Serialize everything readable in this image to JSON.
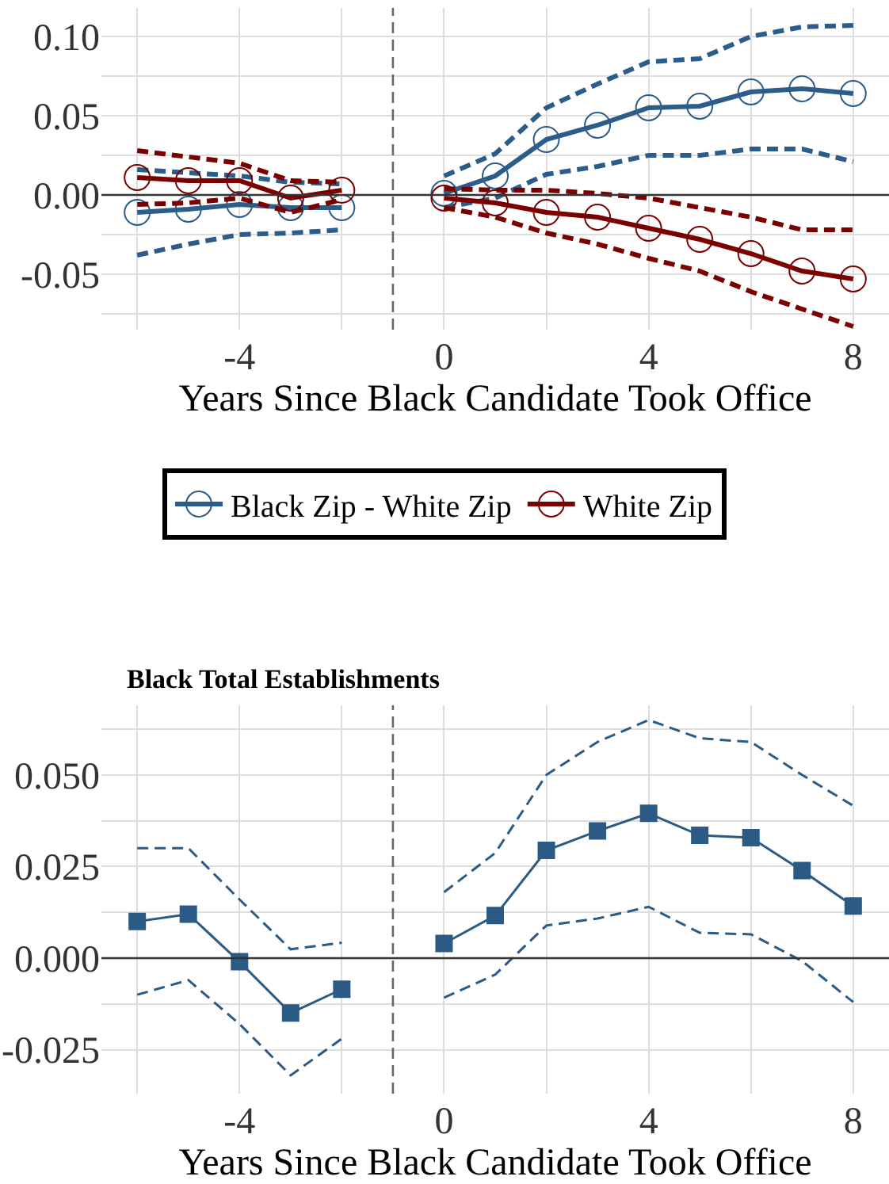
{
  "chart_data": [
    {
      "type": "line",
      "xlabel": "Years Since Black Candidate Took Office",
      "x": [
        -6,
        -5,
        -4,
        -3,
        -2,
        -1,
        0,
        1,
        2,
        3,
        4,
        5,
        6,
        7,
        8
      ],
      "series": [
        {
          "name": "Black Zip - White Zip",
          "color": "#2c5c8a",
          "marker": "circle",
          "line_style": "solid",
          "values": [
            -0.011,
            -0.009,
            -0.006,
            -0.008,
            -0.008,
            null,
            0.001,
            0.012,
            0.035,
            0.044,
            0.055,
            0.056,
            0.065,
            0.067,
            0.064
          ]
        },
        {
          "color": "#2c5c8a",
          "marker": "none",
          "line_style": "dashed",
          "values": [
            0.016,
            0.014,
            0.012,
            0.008,
            0.007,
            null,
            0.012,
            0.026,
            0.055,
            0.07,
            0.084,
            0.086,
            0.1,
            0.106,
            0.107
          ]
        },
        {
          "color": "#2c5c8a",
          "marker": "none",
          "line_style": "dashed",
          "values": [
            -0.038,
            -0.031,
            -0.025,
            -0.024,
            -0.022,
            null,
            -0.008,
            -0.002,
            0.013,
            0.018,
            0.025,
            0.025,
            0.029,
            0.029,
            0.021
          ]
        },
        {
          "name": "White Zip",
          "color": "#7b0000",
          "marker": "circle",
          "line_style": "solid",
          "values": [
            0.011,
            0.009,
            0.009,
            -0.002,
            0.003,
            null,
            -0.002,
            -0.005,
            -0.011,
            -0.014,
            -0.021,
            -0.028,
            -0.037,
            -0.048,
            -0.053
          ]
        },
        {
          "color": "#7b0000",
          "marker": "none",
          "line_style": "dashed",
          "values": [
            0.028,
            0.024,
            0.02,
            0.009,
            0.008,
            null,
            0.004,
            0.003,
            0.003,
            0.001,
            -0.002,
            -0.008,
            -0.014,
            -0.022,
            -0.022
          ]
        },
        {
          "color": "#7b0000",
          "marker": "none",
          "line_style": "dashed",
          "values": [
            -0.006,
            -0.005,
            -0.002,
            -0.011,
            -0.003,
            null,
            -0.008,
            -0.014,
            -0.024,
            -0.031,
            -0.04,
            -0.048,
            -0.061,
            -0.072,
            -0.083
          ]
        }
      ],
      "xlim": [
        -6.7,
        8.7
      ],
      "xticks": [
        {
          "value": -6,
          "label": null
        },
        -4,
        {
          "value": -2,
          "label": null
        },
        0,
        {
          "value": 2,
          "label": null
        },
        4,
        {
          "value": 6,
          "label": null
        },
        8
      ],
      "ylim": [
        -0.085,
        0.118
      ],
      "yticks": [
        {
          "value": -0.075,
          "label": null
        },
        {
          "value": -0.05,
          "label": "-0.05"
        },
        {
          "value": -0.025,
          "label": null
        },
        {
          "value": 0,
          "label": "0.00"
        },
        {
          "value": 0.025,
          "label": null
        },
        {
          "value": 0.05,
          "label": "0.05"
        },
        {
          "value": 0.075,
          "label": null
        },
        {
          "value": 0.1,
          "label": "0.10"
        }
      ],
      "ref_lines": [
        {
          "axis": "x",
          "value": -1,
          "color": "#666666",
          "line_style": "dashed"
        },
        {
          "axis": "y",
          "value": 0,
          "color": "#333333",
          "line_style": "solid"
        }
      ],
      "grid": true,
      "legend": "bottom"
    },
    {
      "type": "line",
      "title": "Black Total Establishments",
      "xlabel": "Years Since Black Candidate Took Office",
      "x": [
        -6,
        -5,
        -4,
        -3,
        -2,
        -1,
        0,
        1,
        2,
        3,
        4,
        5,
        6,
        7,
        8
      ],
      "series": [
        {
          "color": "#2b5a85",
          "marker": "square",
          "line_style": "solid",
          "values": [
            0.01,
            0.012,
            -0.001,
            -0.015,
            -0.0085,
            null,
            0.004,
            0.0116,
            0.0294,
            0.0347,
            0.0395,
            0.0335,
            0.0329,
            0.0239,
            0.0142
          ]
        },
        {
          "color": "#2b5a85",
          "marker": "none",
          "line_style": "dashed",
          "values": [
            0.03,
            0.03,
            0.016,
            0.0024,
            0.0042,
            null,
            0.018,
            0.0287,
            0.05,
            0.059,
            0.065,
            0.06,
            0.059,
            0.05,
            0.0416
          ]
        },
        {
          "color": "#2b5a85",
          "marker": "none",
          "line_style": "dashed",
          "values": [
            -0.01,
            -0.006,
            -0.018,
            -0.032,
            -0.022,
            null,
            -0.0108,
            -0.0045,
            0.0089,
            0.0108,
            0.014,
            0.0069,
            0.0065,
            -0.0008,
            -0.012
          ]
        }
      ],
      "xlim": [
        -6.7,
        8.7
      ],
      "xticks": [
        {
          "value": -6,
          "label": null
        },
        -4,
        {
          "value": -2,
          "label": null
        },
        0,
        {
          "value": 2,
          "label": null
        },
        4,
        {
          "value": 6,
          "label": null
        },
        8
      ],
      "ylim": [
        -0.037,
        0.069
      ],
      "yticks": [
        {
          "value": -0.025,
          "label": "-0.025"
        },
        {
          "value": -0.0125,
          "label": null
        },
        {
          "value": 0,
          "label": "0.000"
        },
        {
          "value": 0.0125,
          "label": null
        },
        {
          "value": 0.025,
          "label": "0.025"
        },
        {
          "value": 0.0375,
          "label": null
        },
        {
          "value": 0.05,
          "label": "0.050"
        },
        {
          "value": 0.0625,
          "label": null
        }
      ],
      "ref_lines": [
        {
          "axis": "x",
          "value": -1,
          "color": "#666666",
          "line_style": "dashed"
        },
        {
          "axis": "y",
          "value": 0,
          "color": "#333333",
          "line_style": "solid"
        }
      ],
      "grid": true,
      "legend": false
    }
  ]
}
